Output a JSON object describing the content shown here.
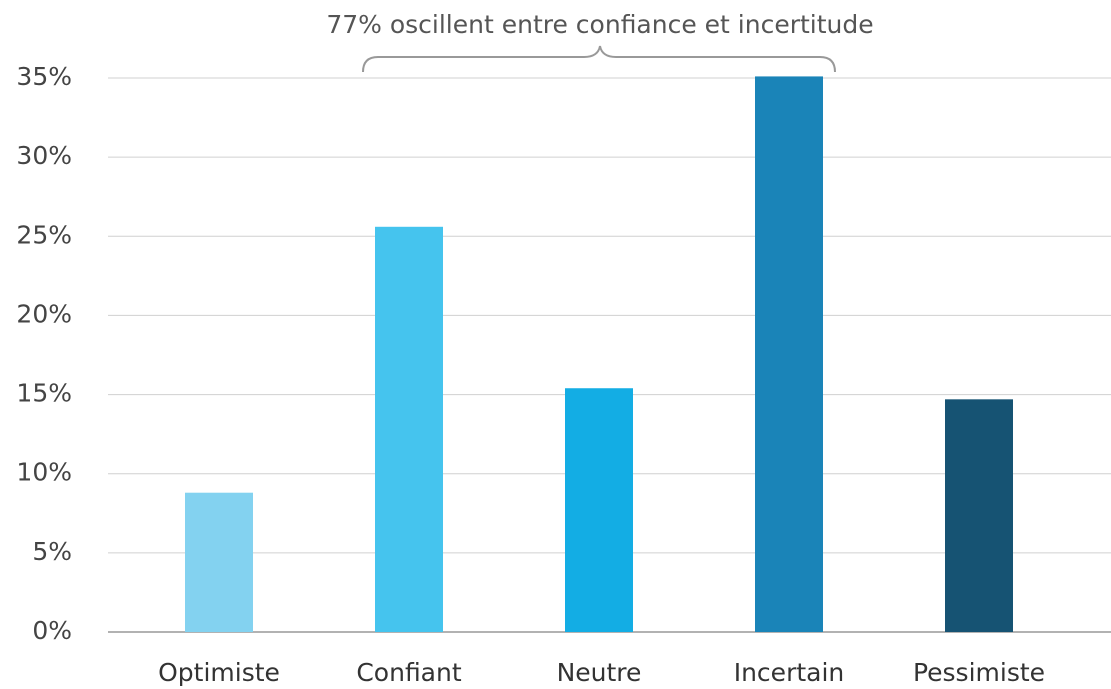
{
  "chart_data": {
    "type": "bar",
    "annotation": "77% oscillent entre confiance et incertitude",
    "categories": [
      "Optimiste",
      "Confiant",
      "Neutre",
      "Incertain",
      "Pessimiste"
    ],
    "values": [
      8.8,
      25.6,
      15.4,
      35.1,
      14.7
    ],
    "colors": [
      "#83d2f0",
      "#45c4ee",
      "#13ade4",
      "#1a84b8",
      "#165373"
    ],
    "ylim": [
      0,
      35
    ],
    "yticks": [
      {
        "value": 0,
        "label": "0%"
      },
      {
        "value": 5,
        "label": "5%"
      },
      {
        "value": 10,
        "label": "10%"
      },
      {
        "value": 15,
        "label": "15%"
      },
      {
        "value": 20,
        "label": "20%"
      },
      {
        "value": 25,
        "label": "25%"
      },
      {
        "value": 30,
        "label": "30%"
      },
      {
        "value": 35,
        "label": "35%"
      }
    ],
    "grid": true
  }
}
